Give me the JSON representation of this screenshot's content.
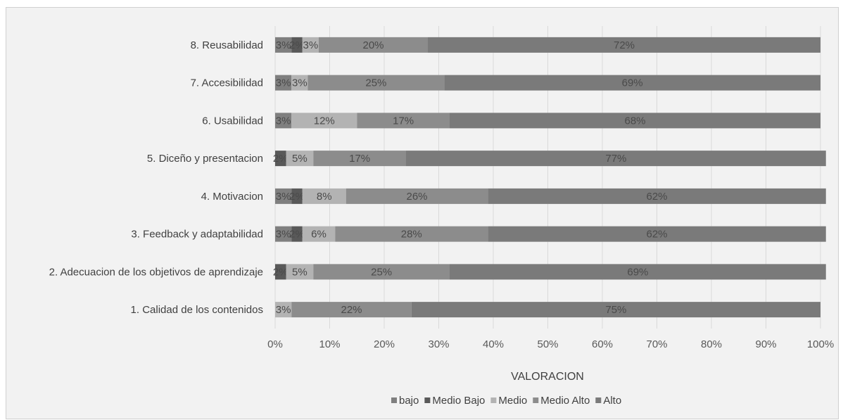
{
  "chart_data": {
    "type": "bar",
    "orientation": "horizontal",
    "stacked": "percent",
    "xlabel": "VALORACION",
    "xlim": [
      0,
      100
    ],
    "x_ticks": [
      "0%",
      "10%",
      "20%",
      "30%",
      "40%",
      "50%",
      "60%",
      "70%",
      "80%",
      "90%",
      "100%"
    ],
    "grid": true,
    "legend_position": "bottom",
    "categories": [
      "8. Reusabilidad",
      "7. Accesibilidad",
      "6. Usabilidad",
      "5. Diceño y presentacion",
      "4. Motivacion",
      "3. Feedback y adaptabilidad",
      "2. Adecuacion de los objetivos de aprendizaje",
      "1. Calidad de los contenidos"
    ],
    "series": [
      {
        "name": "bajo",
        "color": "#7f7f7f",
        "values": [
          3,
          3,
          3,
          0,
          3,
          3,
          0,
          0
        ],
        "labels": [
          "3%",
          "3%",
          "3%",
          "",
          "3%",
          "3%",
          "",
          ""
        ]
      },
      {
        "name": "Medio Bajo",
        "color": "#595959",
        "values": [
          2,
          0,
          0,
          2,
          2,
          2,
          2,
          0
        ],
        "labels": [
          "2%",
          "",
          "",
          "2%",
          "2%",
          "2%",
          "2%",
          ""
        ]
      },
      {
        "name": "Medio",
        "color": "#b3b3b3",
        "values": [
          3,
          3,
          12,
          5,
          8,
          6,
          5,
          3
        ],
        "labels": [
          "3%",
          "3%",
          "12%",
          "5%",
          "8%",
          "6%",
          "5%",
          "3%"
        ]
      },
      {
        "name": "Medio Alto",
        "color": "#8c8c8c",
        "values": [
          20,
          25,
          17,
          17,
          26,
          28,
          25,
          22
        ],
        "labels": [
          "20%",
          "25%",
          "17%",
          "17%",
          "26%",
          "28%",
          "25%",
          "22%"
        ]
      },
      {
        "name": "Alto",
        "color": "#7a7a7a",
        "values": [
          72,
          69,
          68,
          77,
          62,
          62,
          69,
          75
        ],
        "labels": [
          "72%",
          "69%",
          "68%",
          "77%",
          "62%",
          "62%",
          "69%",
          "75%"
        ]
      }
    ]
  }
}
